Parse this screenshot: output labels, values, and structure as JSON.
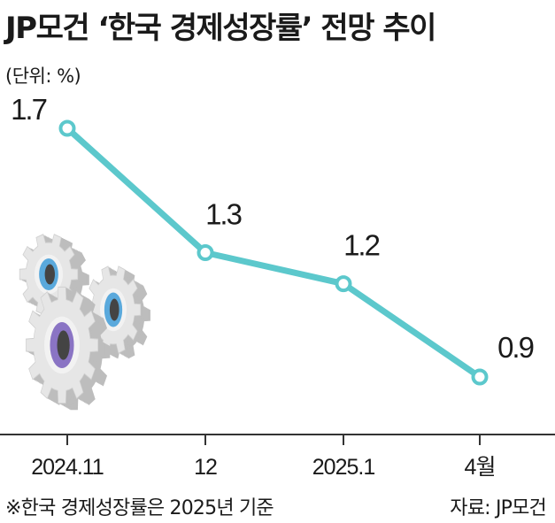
{
  "header": {
    "title": "JP모건 ‘한국 경제성장률’ 전망 추이",
    "unit": "(단위: %)"
  },
  "footer": {
    "note": "※한국 경제성장률은 2025년 기준",
    "source": "자료: JP모건"
  },
  "colors": {
    "line": "#5cc8cc",
    "axis": "#333333",
    "gear_face": "#e6e6e6",
    "gear_side": "#bdbdbd",
    "gear_blue": "#5aa9dc",
    "gear_purple": "#8a74c4"
  },
  "chart_data": {
    "type": "line",
    "title": "JP모건 ‘한국 경제성장률’ 전망 추이",
    "categories": [
      "2024.11",
      "12",
      "2025.1",
      "4월"
    ],
    "values": [
      1.7,
      1.3,
      1.2,
      0.9
    ],
    "value_labels": [
      "1.7",
      "1.3",
      "1.2",
      "0.9"
    ],
    "ylabel": "(단위: %)",
    "grid": false,
    "legend": "none"
  }
}
